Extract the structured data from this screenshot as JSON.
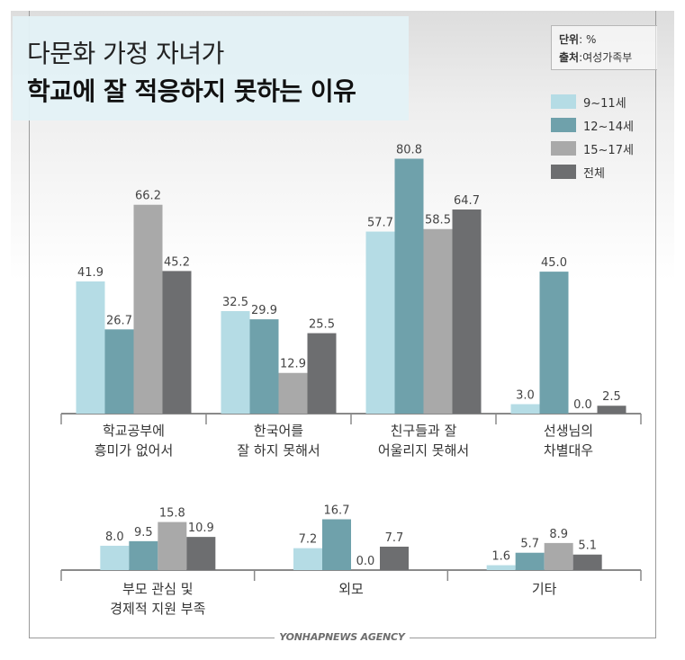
{
  "header": {
    "title_line1": "다문화 가정 자녀가",
    "title_line2": "학교에 잘 적응하지 못하는 이유",
    "unit_label": "단위",
    "unit_value": ": %",
    "source_label": "출처",
    "source_value": ":여성가족부"
  },
  "footer": {
    "agency": "YONHAPNEWS AGENCY"
  },
  "colors": {
    "s1": "#b5dce5",
    "s2": "#6fa1ab",
    "s3": "#a9a9a9",
    "s4": "#6d6e70"
  },
  "chart_data": [
    {
      "type": "bar",
      "categories": [
        [
          "학교공부에",
          "흥미가 없어서"
        ],
        [
          "한국어를",
          "잘 하지 못해서"
        ],
        [
          "친구들과 잘",
          "어울리지 못해서"
        ],
        [
          "선생님의",
          "차별대우"
        ]
      ],
      "series": [
        {
          "name": "9~11세",
          "values": [
            41.9,
            32.5,
            57.7,
            3.0
          ]
        },
        {
          "name": "12~14세",
          "values": [
            26.7,
            29.9,
            80.8,
            45.0
          ]
        },
        {
          "name": "15~17세",
          "values": [
            66.2,
            12.9,
            58.5,
            0.0
          ]
        },
        {
          "name": "전체",
          "values": [
            45.2,
            25.5,
            64.7,
            2.5
          ]
        }
      ],
      "data_labels": [
        [
          "41.9",
          "32.5",
          "57.7",
          "3.0"
        ],
        [
          "26.7",
          "29.9",
          "80.8",
          "45.0"
        ],
        [
          "66.2",
          "12.9",
          "58.5",
          "0.0"
        ],
        [
          "45.2",
          "25.5",
          "64.7",
          "2.5"
        ]
      ],
      "legend": "top-right",
      "grid": false
    },
    {
      "type": "bar",
      "categories": [
        [
          "부모 관심 및",
          "경제적 지원 부족"
        ],
        [
          "외모"
        ],
        [
          "기타"
        ]
      ],
      "series": [
        {
          "name": "9~11세",
          "values": [
            8.0,
            7.2,
            1.6
          ]
        },
        {
          "name": "12~14세",
          "values": [
            9.5,
            16.7,
            5.7
          ]
        },
        {
          "name": "15~17세",
          "values": [
            15.8,
            0.0,
            8.9
          ]
        },
        {
          "name": "전체",
          "values": [
            10.9,
            7.7,
            5.1
          ]
        }
      ],
      "data_labels": [
        [
          "8.0",
          "7.2",
          "1.6"
        ],
        [
          "9.5",
          "16.7",
          "5.7"
        ],
        [
          "15.8",
          "0.0",
          "8.9"
        ],
        [
          "10.9",
          "7.7",
          "5.1"
        ]
      ],
      "grid": false
    }
  ]
}
